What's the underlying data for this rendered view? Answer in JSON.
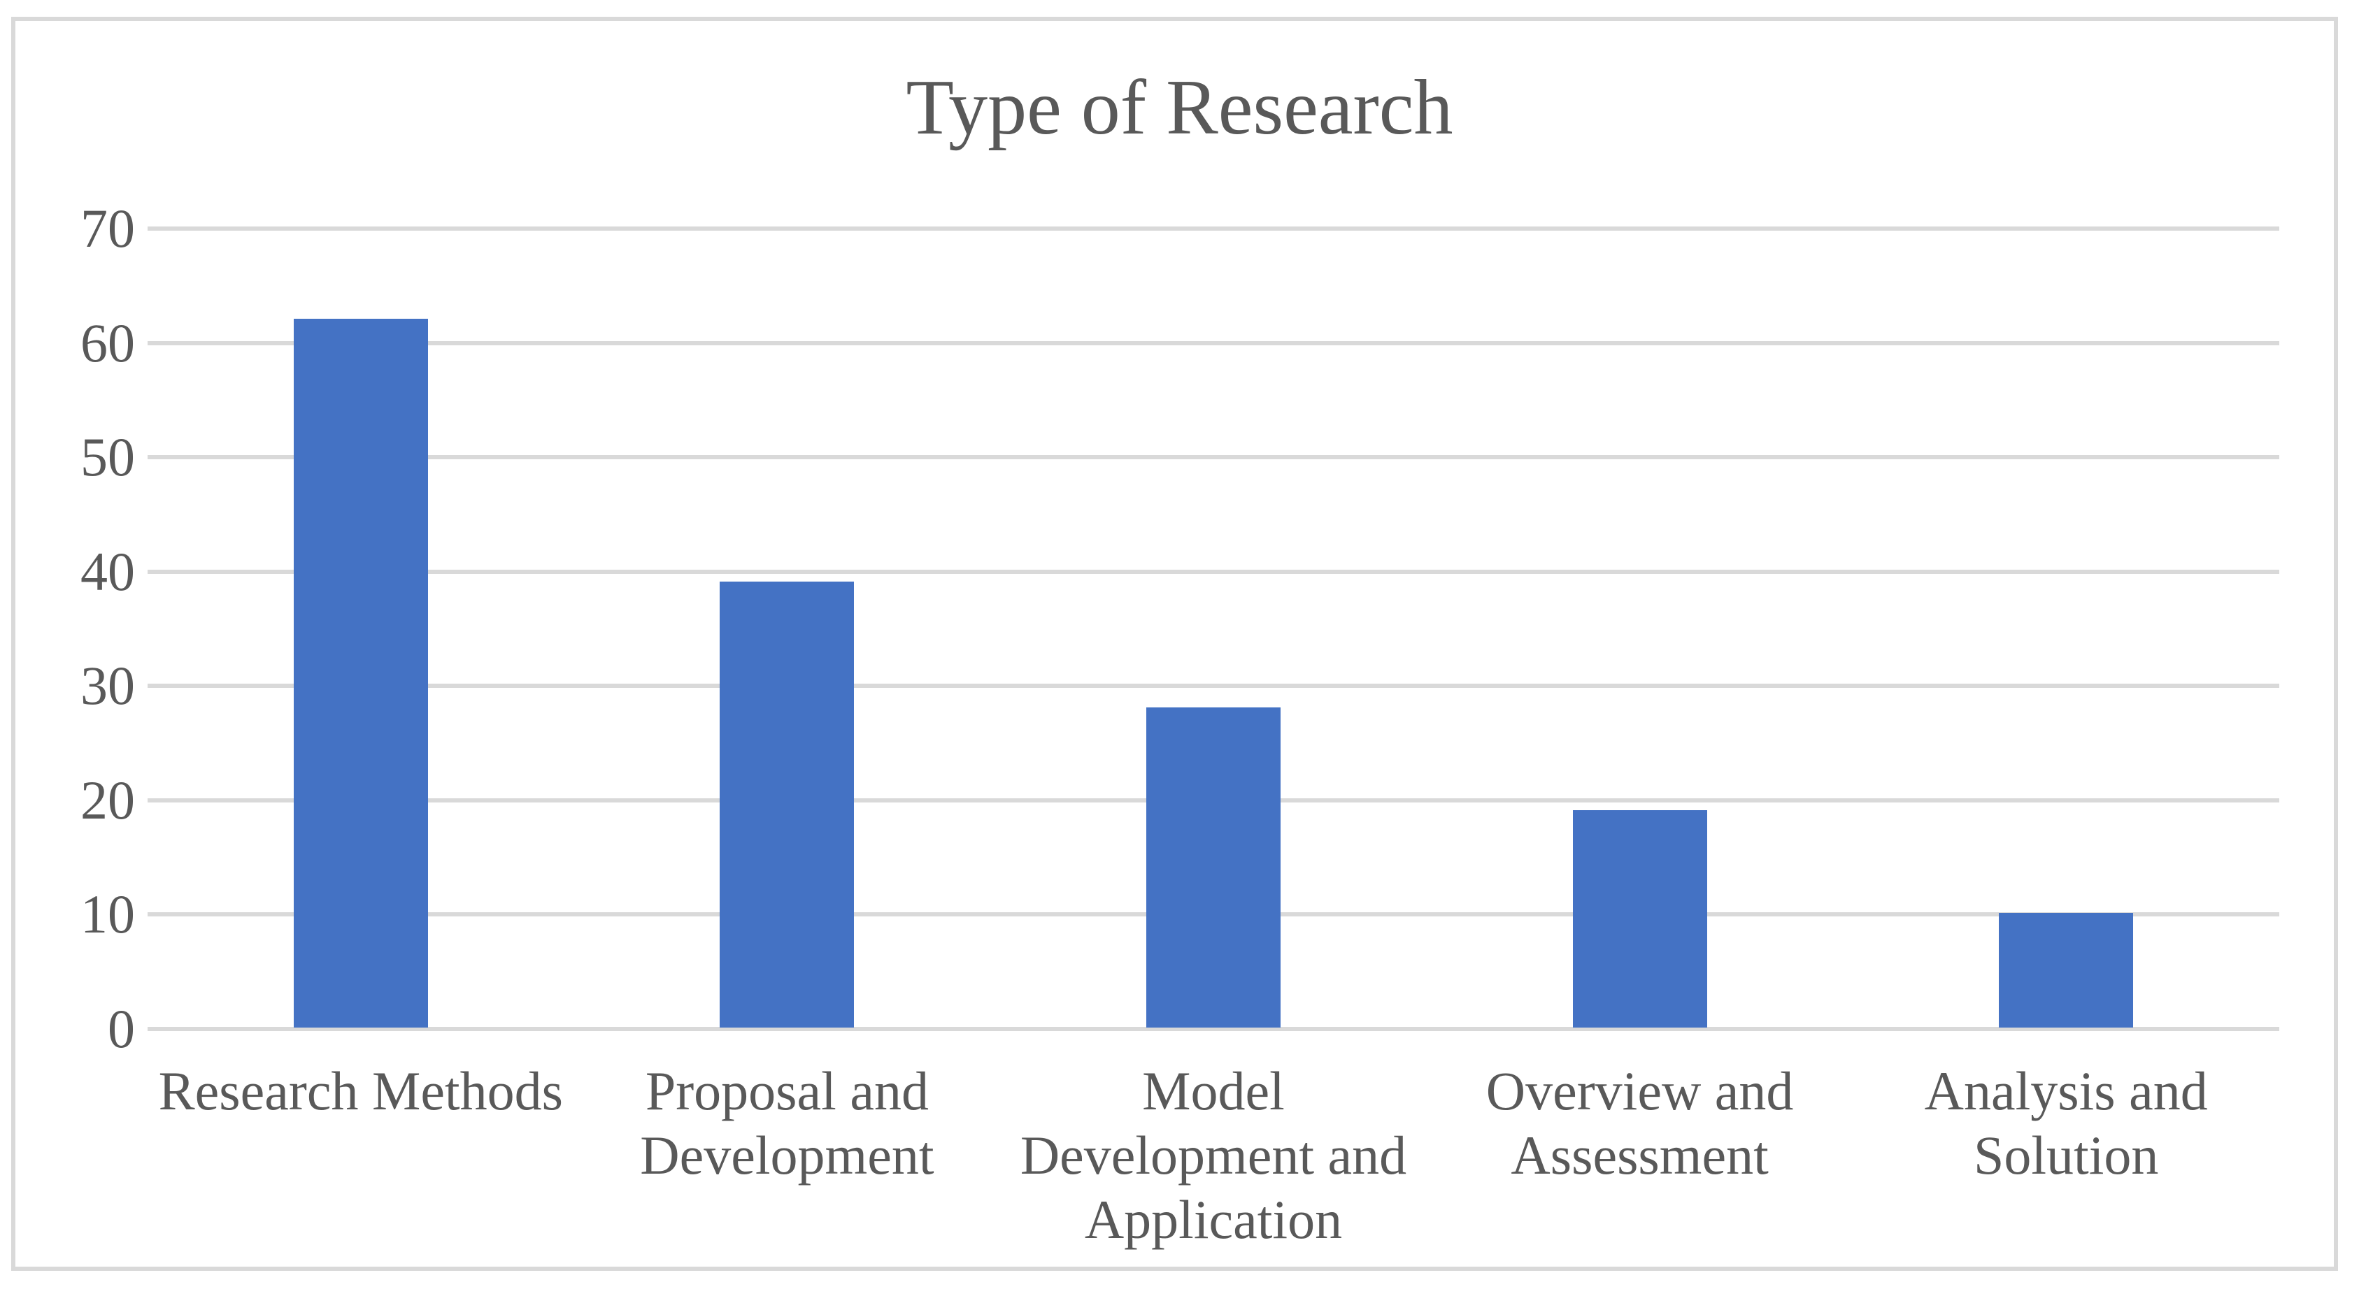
{
  "chart_data": {
    "type": "bar",
    "title": "Type of Research",
    "categories": [
      "Research Methods",
      "Proposal and\nDevelopment",
      "Model\nDevelopment and\nApplication",
      "Overview and\nAssessment",
      "Analysis and\nSolution"
    ],
    "values": [
      62,
      39,
      28,
      19,
      10
    ],
    "xlabel": "",
    "ylabel": "",
    "ylim": [
      0,
      70
    ],
    "yticks": [
      0,
      10,
      20,
      30,
      40,
      50,
      60,
      70
    ],
    "grid": "horizontal",
    "legend_position": "none",
    "bar_color": "#4472C4",
    "gridline_color": "#D9D9D9",
    "frame_color": "#D9D9D9",
    "text_color": "#595959"
  }
}
